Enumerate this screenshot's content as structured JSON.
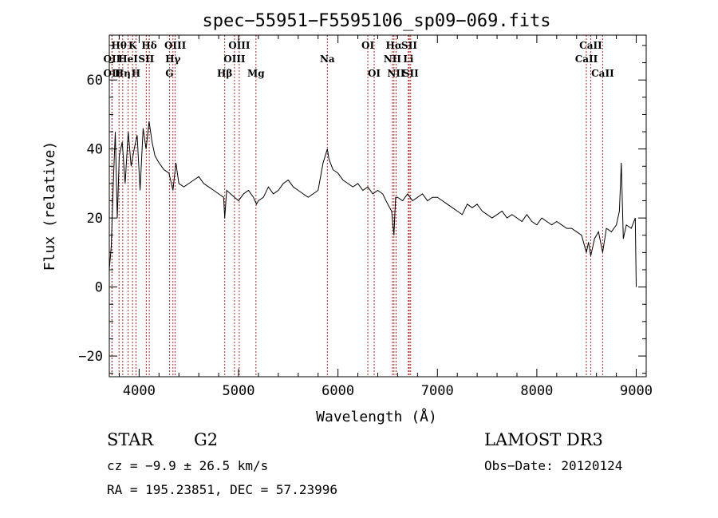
{
  "chart_data": {
    "type": "line",
    "title": "spec−55951−F5595106_sp09−069.fits",
    "xlabel": "Wavelength (Å)",
    "ylabel": "Flux (relative)",
    "xlim": [
      3700,
      9100
    ],
    "ylim": [
      -26,
      73
    ],
    "xticks": [
      4000,
      5000,
      6000,
      7000,
      8000,
      9000
    ],
    "xtick_labels": [
      "4000",
      "5000",
      "6000",
      "7000",
      "8000",
      "9000"
    ],
    "yticks": [
      -20,
      0,
      20,
      40,
      60
    ],
    "ytick_labels": [
      "−20",
      "0",
      "20",
      "40",
      "60"
    ],
    "series": [
      {
        "name": "flux",
        "x": [
          3700,
          3720,
          3740,
          3760,
          3780,
          3800,
          3830,
          3860,
          3890,
          3920,
          3950,
          3980,
          4010,
          4040,
          4070,
          4100,
          4130,
          4160,
          4200,
          4250,
          4300,
          4340,
          4370,
          4400,
          4450,
          4500,
          4550,
          4600,
          4650,
          4700,
          4750,
          4800,
          4850,
          4861,
          4880,
          4920,
          4960,
          5000,
          5050,
          5100,
          5150,
          5180,
          5200,
          5250,
          5300,
          5350,
          5400,
          5450,
          5500,
          5550,
          5600,
          5650,
          5700,
          5750,
          5800,
          5850,
          5893,
          5910,
          5950,
          6000,
          6050,
          6100,
          6150,
          6200,
          6250,
          6300,
          6350,
          6400,
          6450,
          6500,
          6540,
          6563,
          6580,
          6600,
          6650,
          6700,
          6750,
          6800,
          6850,
          6900,
          6950,
          7000,
          7050,
          7100,
          7150,
          7200,
          7250,
          7300,
          7350,
          7400,
          7450,
          7500,
          7550,
          7600,
          7650,
          7700,
          7750,
          7800,
          7850,
          7900,
          7950,
          8000,
          8050,
          8100,
          8150,
          8200,
          8250,
          8300,
          8350,
          8400,
          8450,
          8498,
          8520,
          8542,
          8580,
          8620,
          8662,
          8700,
          8750,
          8800,
          8830,
          8850,
          8870,
          8900,
          8950,
          8990,
          9000
        ],
        "y": [
          5,
          12,
          30,
          45,
          20,
          38,
          42,
          30,
          45,
          35,
          40,
          44,
          28,
          46,
          40,
          48,
          42,
          38,
          36,
          34,
          33,
          28,
          36,
          30,
          29,
          30,
          31,
          32,
          30,
          29,
          28,
          27,
          26,
          20,
          28,
          27,
          26,
          25,
          27,
          28,
          26,
          24,
          25,
          26,
          29,
          27,
          28,
          30,
          31,
          29,
          28,
          27,
          26,
          27,
          28,
          36,
          40,
          37,
          34,
          33,
          31,
          30,
          29,
          30,
          28,
          29,
          27,
          28,
          27,
          24,
          22,
          15,
          26,
          26,
          25,
          27,
          25,
          26,
          27,
          25,
          26,
          26,
          25,
          24,
          23,
          22,
          21,
          24,
          23,
          24,
          22,
          21,
          20,
          21,
          22,
          20,
          21,
          20,
          19,
          21,
          19,
          18,
          20,
          19,
          18,
          19,
          18,
          17,
          17,
          16,
          15,
          10,
          13,
          9,
          14,
          16,
          10,
          17,
          16,
          18,
          22,
          36,
          14,
          18,
          17,
          20,
          0
        ]
      }
    ],
    "spectral_lines": [
      {
        "label": "Hθ",
        "x": 3798,
        "row": 0
      },
      {
        "label": "OII",
        "x": 3727,
        "row": 1
      },
      {
        "label": "OII",
        "x": 3727,
        "row": 2
      },
      {
        "label": "Hη",
        "x": 3835,
        "row": 2
      },
      {
        "label": "K",
        "x": 3934,
        "row": 0
      },
      {
        "label": "HeI",
        "x": 3889,
        "row": 1
      },
      {
        "label": "H",
        "x": 3968,
        "row": 2
      },
      {
        "label": "SII",
        "x": 4072,
        "row": 1
      },
      {
        "label": "Hδ",
        "x": 4102,
        "row": 0
      },
      {
        "label": "OIII",
        "x": 4363,
        "row": 0
      },
      {
        "label": "Hγ",
        "x": 4340,
        "row": 1
      },
      {
        "label": "G",
        "x": 4305,
        "row": 2
      },
      {
        "label": "Hβ",
        "x": 4861,
        "row": 2
      },
      {
        "label": "OIII",
        "x": 5007,
        "row": 0
      },
      {
        "label": "OIII",
        "x": 4959,
        "row": 1
      },
      {
        "label": "Mg",
        "x": 5175,
        "row": 2
      },
      {
        "label": "Na",
        "x": 5893,
        "row": 1
      },
      {
        "label": "OI",
        "x": 6300,
        "row": 0
      },
      {
        "label": "OI",
        "x": 6364,
        "row": 2
      },
      {
        "label": "Hα",
        "x": 6563,
        "row": 0
      },
      {
        "label": "NII",
        "x": 6548,
        "row": 1
      },
      {
        "label": "NII",
        "x": 6584,
        "row": 2
      },
      {
        "label": "SII",
        "x": 6717,
        "row": 0
      },
      {
        "label": "Li",
        "x": 6708,
        "row": 1
      },
      {
        "label": "SII",
        "x": 6731,
        "row": 2
      },
      {
        "label": "CaII",
        "x": 8542,
        "row": 0
      },
      {
        "label": "CaII",
        "x": 8498,
        "row": 1
      },
      {
        "label": "CaII",
        "x": 8662,
        "row": 2
      }
    ]
  },
  "info": {
    "class_label": "STAR",
    "subclass_label": "G2",
    "survey": "LAMOST DR3",
    "cz": "cz = −9.9 ± 26.5 km/s",
    "obs_date": "Obs−Date: 20120124",
    "coords": "RA = 195.23851, DEC =  57.23996"
  }
}
